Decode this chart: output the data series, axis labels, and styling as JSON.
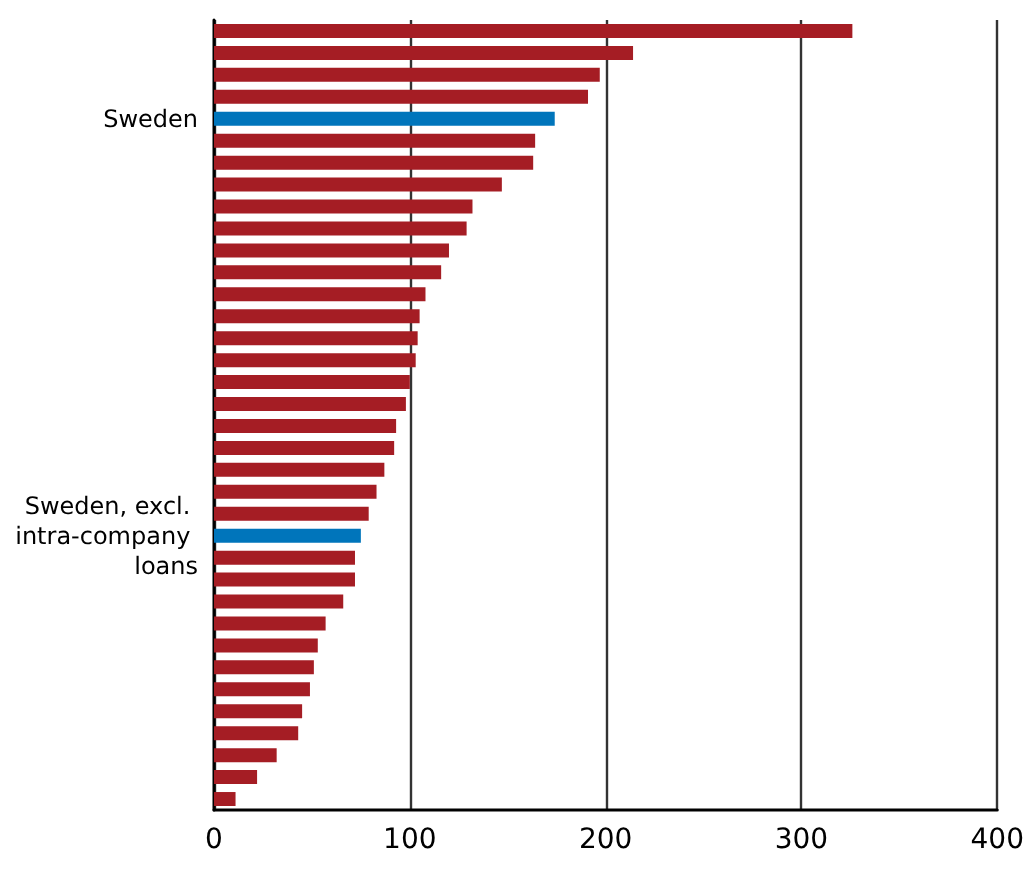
{
  "chart_data": {
    "type": "bar",
    "orientation": "horizontal",
    "categories": [
      null,
      null,
      null,
      null,
      "Sweden",
      null,
      null,
      null,
      null,
      null,
      null,
      null,
      null,
      null,
      null,
      null,
      null,
      null,
      null,
      null,
      null,
      null,
      null,
      "Sweden, excl. intra-company loans",
      null,
      null,
      null,
      null,
      null,
      null,
      null,
      null,
      null,
      null,
      null,
      null
    ],
    "values": [
      326,
      214,
      197,
      191,
      174,
      164,
      163,
      147,
      132,
      129,
      120,
      116,
      108,
      105,
      104,
      103,
      100,
      98,
      93,
      92,
      87,
      83,
      79,
      75,
      72,
      72,
      66,
      57,
      53,
      51,
      49,
      45,
      43,
      32,
      22,
      11
    ],
    "colors": [
      "#a51d24",
      "#a51d24",
      "#a51d24",
      "#a51d24",
      "#0075bb",
      "#a51d24",
      "#a51d24",
      "#a51d24",
      "#a51d24",
      "#a51d24",
      "#a51d24",
      "#a51d24",
      "#a51d24",
      "#a51d24",
      "#a51d24",
      "#a51d24",
      "#a51d24",
      "#a51d24",
      "#a51d24",
      "#a51d24",
      "#a51d24",
      "#a51d24",
      "#a51d24",
      "#0075bb",
      "#a51d24",
      "#a51d24",
      "#a51d24",
      "#a51d24",
      "#a51d24",
      "#a51d24",
      "#a51d24",
      "#a51d24",
      "#a51d24",
      "#a51d24",
      "#a51d24",
      "#a51d24"
    ],
    "xlim": [
      0,
      400
    ],
    "xticks": [
      0,
      100,
      200,
      300,
      400
    ],
    "grid": "x"
  }
}
